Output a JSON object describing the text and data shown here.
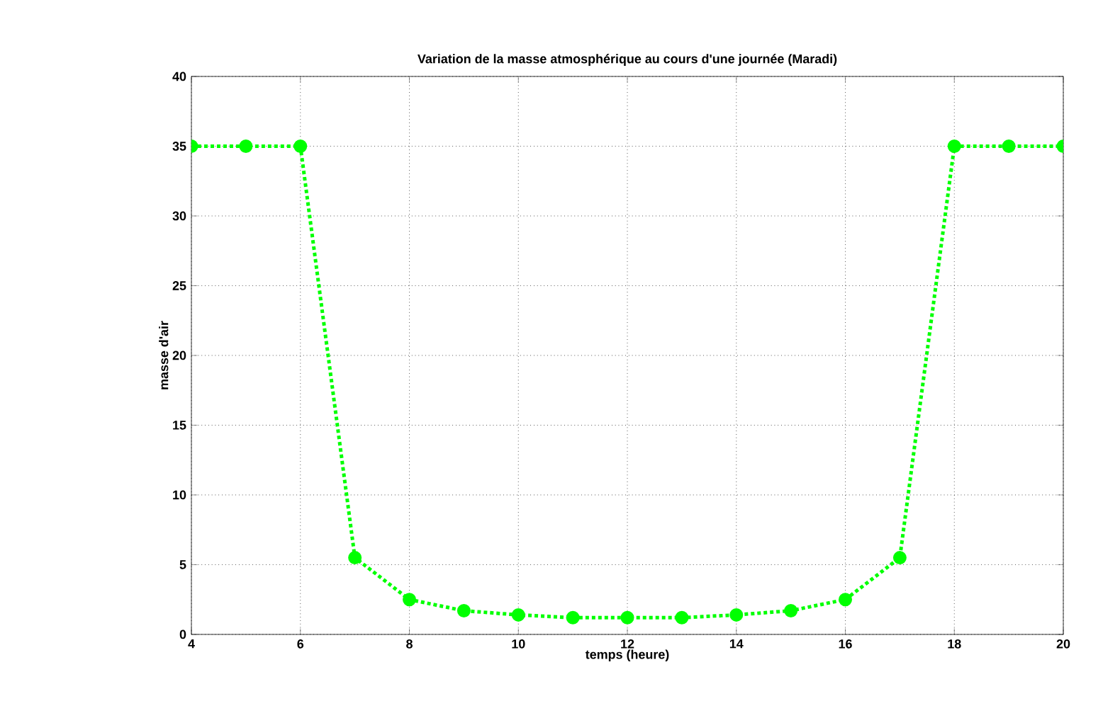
{
  "chart_data": {
    "type": "line",
    "title": "Variation de la masse atmosphérique au cours d'une journée (Maradi)",
    "xlabel": "temps (heure)",
    "ylabel": "masse d'air",
    "x": [
      4,
      5,
      6,
      7,
      8,
      9,
      10,
      11,
      12,
      13,
      14,
      15,
      16,
      17,
      18,
      19,
      20
    ],
    "series": [
      {
        "color": "#00ff00",
        "values": [
          35,
          35,
          35,
          5.5,
          2.5,
          1.7,
          1.4,
          1.2,
          1.2,
          1.2,
          1.4,
          1.7,
          2.5,
          5.5,
          35,
          35,
          35
        ]
      }
    ],
    "xlim": [
      4,
      20
    ],
    "ylim": [
      0,
      40
    ],
    "xticks": [
      4,
      6,
      8,
      10,
      12,
      14,
      16,
      18,
      20
    ],
    "yticks": [
      0,
      5,
      10,
      15,
      20,
      25,
      30,
      35,
      40
    ],
    "grid": true,
    "marker": "circle",
    "line_style": "dotted"
  }
}
